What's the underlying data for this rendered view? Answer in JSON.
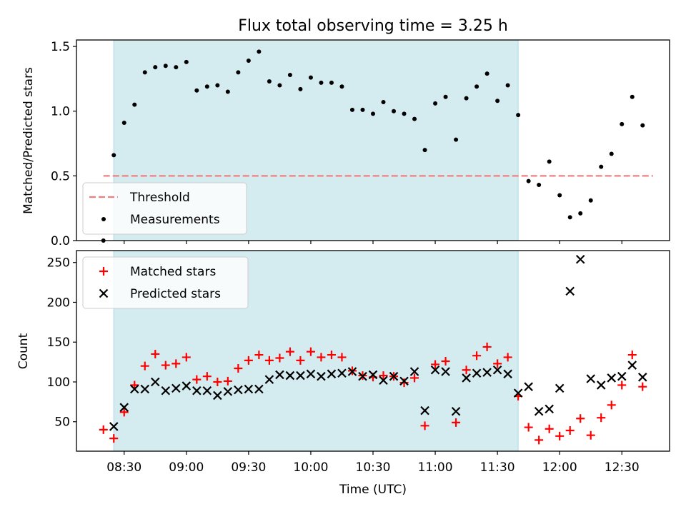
{
  "chart_data": {
    "type": "scatter",
    "title": "Flux total observing time = 3.25 h",
    "xlabel": "Time (UTC)",
    "x_ticks": [
      "08:30",
      "09:00",
      "09:30",
      "10:00",
      "10:30",
      "11:00",
      "11:30",
      "12:00",
      "12:30"
    ],
    "x_range": [
      "08:07",
      "12:53"
    ],
    "highlight_span": {
      "start": "08:25",
      "end": "11:40",
      "color": "#d4ebf0"
    },
    "panels": [
      {
        "ylabel": "Matched/Predicted stars",
        "ylim": [
          0,
          1.55
        ],
        "yticks": [
          "0.0",
          "0.5",
          "1.0",
          "1.5"
        ],
        "legend_position": "lower-left",
        "threshold": {
          "name": "Threshold",
          "y": 0.5,
          "x_start": "08:20",
          "x_end": "12:45",
          "color": "#f08080",
          "style": "dashed"
        },
        "series": [
          {
            "name": "Measurements",
            "marker": "dot",
            "color": "#000000",
            "points": [
              [
                "08:20",
                0.0
              ],
              [
                "08:25",
                0.66
              ],
              [
                "08:30",
                0.91
              ],
              [
                "08:35",
                1.05
              ],
              [
                "08:40",
                1.3
              ],
              [
                "08:45",
                1.34
              ],
              [
                "08:50",
                1.35
              ],
              [
                "08:55",
                1.34
              ],
              [
                "09:00",
                1.38
              ],
              [
                "09:05",
                1.16
              ],
              [
                "09:10",
                1.19
              ],
              [
                "09:15",
                1.2
              ],
              [
                "09:20",
                1.15
              ],
              [
                "09:25",
                1.3
              ],
              [
                "09:30",
                1.39
              ],
              [
                "09:35",
                1.46
              ],
              [
                "09:40",
                1.23
              ],
              [
                "09:45",
                1.2
              ],
              [
                "09:50",
                1.28
              ],
              [
                "09:55",
                1.17
              ],
              [
                "10:00",
                1.26
              ],
              [
                "10:05",
                1.22
              ],
              [
                "10:10",
                1.22
              ],
              [
                "10:15",
                1.19
              ],
              [
                "10:20",
                1.01
              ],
              [
                "10:25",
                1.01
              ],
              [
                "10:30",
                0.98
              ],
              [
                "10:35",
                1.07
              ],
              [
                "10:40",
                1.0
              ],
              [
                "10:45",
                0.98
              ],
              [
                "10:50",
                0.94
              ],
              [
                "10:55",
                0.7
              ],
              [
                "11:00",
                1.06
              ],
              [
                "11:05",
                1.11
              ],
              [
                "11:10",
                0.78
              ],
              [
                "11:15",
                1.1
              ],
              [
                "11:20",
                1.19
              ],
              [
                "11:25",
                1.29
              ],
              [
                "11:30",
                1.08
              ],
              [
                "11:35",
                1.2
              ],
              [
                "11:40",
                0.97
              ],
              [
                "11:45",
                0.46
              ],
              [
                "11:50",
                0.43
              ],
              [
                "11:55",
                0.61
              ],
              [
                "12:00",
                0.35
              ],
              [
                "12:05",
                0.18
              ],
              [
                "12:10",
                0.21
              ],
              [
                "12:15",
                0.31
              ],
              [
                "12:20",
                0.57
              ],
              [
                "12:25",
                0.67
              ],
              [
                "12:30",
                0.9
              ],
              [
                "12:35",
                1.11
              ],
              [
                "12:40",
                0.89
              ]
            ]
          }
        ]
      },
      {
        "ylabel": "Count",
        "ylim": [
          13,
          265
        ],
        "yticks": [
          "50",
          "100",
          "150",
          "200",
          "250"
        ],
        "legend_position": "upper-left",
        "series": [
          {
            "name": "Matched stars",
            "marker": "plus",
            "color": "#ff0000",
            "points": [
              [
                "08:20",
                40
              ],
              [
                "08:25",
                29
              ],
              [
                "08:30",
                62
              ],
              [
                "08:35",
                96
              ],
              [
                "08:40",
                120
              ],
              [
                "08:45",
                135
              ],
              [
                "08:50",
                121
              ],
              [
                "08:55",
                123
              ],
              [
                "09:00",
                131
              ],
              [
                "09:05",
                103
              ],
              [
                "09:10",
                107
              ],
              [
                "09:15",
                100
              ],
              [
                "09:20",
                101
              ],
              [
                "09:25",
                117
              ],
              [
                "09:30",
                127
              ],
              [
                "09:35",
                134
              ],
              [
                "09:40",
                127
              ],
              [
                "09:45",
                130
              ],
              [
                "09:50",
                138
              ],
              [
                "09:55",
                127
              ],
              [
                "10:00",
                138
              ],
              [
                "10:05",
                131
              ],
              [
                "10:10",
                134
              ],
              [
                "10:15",
                131
              ],
              [
                "10:20",
                114
              ],
              [
                "10:25",
                108
              ],
              [
                "10:30",
                106
              ],
              [
                "10:35",
                108
              ],
              [
                "10:40",
                107
              ],
              [
                "10:45",
                99
              ],
              [
                "10:50",
                105
              ],
              [
                "10:55",
                45
              ],
              [
                "11:00",
                122
              ],
              [
                "11:05",
                126
              ],
              [
                "11:10",
                49
              ],
              [
                "11:15",
                115
              ],
              [
                "11:20",
                133
              ],
              [
                "11:25",
                144
              ],
              [
                "11:30",
                123
              ],
              [
                "11:35",
                131
              ],
              [
                "11:40",
                82
              ],
              [
                "11:45",
                43
              ],
              [
                "11:50",
                27
              ],
              [
                "11:55",
                41
              ],
              [
                "12:00",
                32
              ],
              [
                "12:05",
                39
              ],
              [
                "12:10",
                54
              ],
              [
                "12:15",
                33
              ],
              [
                "12:20",
                55
              ],
              [
                "12:25",
                71
              ],
              [
                "12:30",
                96
              ],
              [
                "12:35",
                134
              ],
              [
                "12:40",
                94
              ]
            ]
          },
          {
            "name": "Predicted stars",
            "marker": "x",
            "color": "#000000",
            "points": [
              [
                "08:25",
                44
              ],
              [
                "08:30",
                68
              ],
              [
                "08:35",
                91
              ],
              [
                "08:40",
                91
              ],
              [
                "08:45",
                100
              ],
              [
                "08:50",
                89
              ],
              [
                "08:55",
                92
              ],
              [
                "09:00",
                95
              ],
              [
                "09:05",
                89
              ],
              [
                "09:10",
                89
              ],
              [
                "09:15",
                83
              ],
              [
                "09:20",
                88
              ],
              [
                "09:25",
                90
              ],
              [
                "09:30",
                91
              ],
              [
                "09:35",
                91
              ],
              [
                "09:40",
                103
              ],
              [
                "09:45",
                109
              ],
              [
                "09:50",
                108
              ],
              [
                "09:55",
                108
              ],
              [
                "10:00",
                110
              ],
              [
                "10:05",
                107
              ],
              [
                "10:10",
                110
              ],
              [
                "10:15",
                111
              ],
              [
                "10:20",
                113
              ],
              [
                "10:25",
                107
              ],
              [
                "10:30",
                109
              ],
              [
                "10:35",
                102
              ],
              [
                "10:40",
                107
              ],
              [
                "10:45",
                101
              ],
              [
                "10:50",
                113
              ],
              [
                "10:55",
                64
              ],
              [
                "11:00",
                115
              ],
              [
                "11:05",
                113
              ],
              [
                "11:10",
                63
              ],
              [
                "11:15",
                105
              ],
              [
                "11:20",
                111
              ],
              [
                "11:25",
                112
              ],
              [
                "11:30",
                115
              ],
              [
                "11:35",
                110
              ],
              [
                "11:40",
                86
              ],
              [
                "11:45",
                94
              ],
              [
                "11:50",
                63
              ],
              [
                "11:55",
                66
              ],
              [
                "12:00",
                92
              ],
              [
                "12:05",
                214
              ],
              [
                "12:10",
                254
              ],
              [
                "12:15",
                104
              ],
              [
                "12:20",
                96
              ],
              [
                "12:25",
                105
              ],
              [
                "12:30",
                107
              ],
              [
                "12:35",
                121
              ],
              [
                "12:40",
                106
              ]
            ]
          }
        ]
      }
    ]
  }
}
